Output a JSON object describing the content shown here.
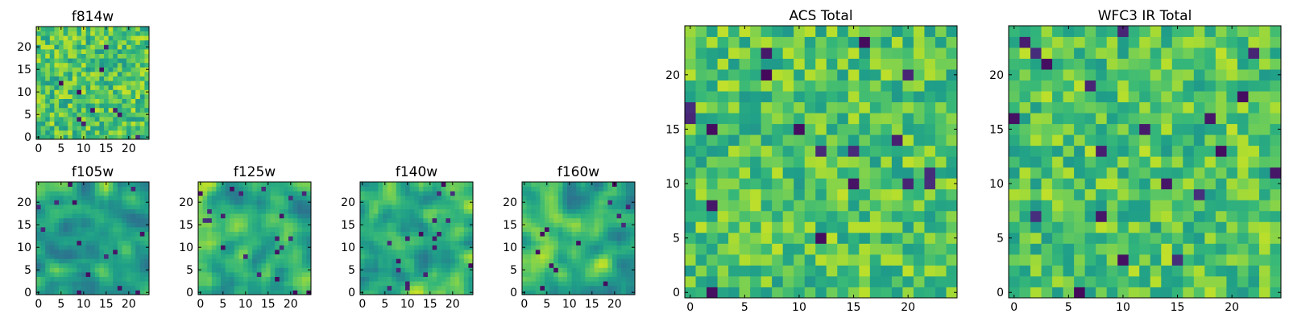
{
  "chart_data": [
    {
      "type": "heatmap",
      "title": "f814w",
      "xticks": [
        "0",
        "5",
        "10",
        "15",
        "20"
      ],
      "yticks": [
        "0",
        "5",
        "10",
        "15",
        "20"
      ],
      "xlim": [
        -0.5,
        24.5
      ],
      "ylim": [
        -0.5,
        24.5
      ],
      "grid": false,
      "colormap": "viridis",
      "size": 25,
      "seed": 11,
      "smooth": 0,
      "mean": 0.72,
      "spread": 0.2
    },
    {
      "type": "heatmap",
      "title": "f105w",
      "xticks": [
        "0",
        "5",
        "10",
        "15",
        "20"
      ],
      "yticks": [
        "0",
        "5",
        "10",
        "15",
        "20"
      ],
      "xlim": [
        -0.5,
        24.5
      ],
      "ylim": [
        -0.5,
        24.5
      ],
      "grid": false,
      "colormap": "viridis",
      "size": 25,
      "seed": 23,
      "smooth": 2,
      "mean": 0.62,
      "spread": 0.26
    },
    {
      "type": "heatmap",
      "title": "f125w",
      "xticks": [
        "0",
        "5",
        "10",
        "15",
        "20"
      ],
      "yticks": [
        "0",
        "5",
        "10",
        "15",
        "20"
      ],
      "xlim": [
        -0.5,
        24.5
      ],
      "ylim": [
        -0.5,
        24.5
      ],
      "grid": false,
      "colormap": "viridis",
      "size": 25,
      "seed": 37,
      "smooth": 2,
      "mean": 0.64,
      "spread": 0.26
    },
    {
      "type": "heatmap",
      "title": "f140w",
      "xticks": [
        "0",
        "5",
        "10",
        "15",
        "20"
      ],
      "yticks": [
        "0",
        "5",
        "10",
        "15",
        "20"
      ],
      "xlim": [
        -0.5,
        24.5
      ],
      "ylim": [
        -0.5,
        24.5
      ],
      "grid": false,
      "colormap": "viridis",
      "size": 25,
      "seed": 41,
      "smooth": 2,
      "mean": 0.66,
      "spread": 0.26
    },
    {
      "type": "heatmap",
      "title": "f160w",
      "xticks": [
        "0",
        "5",
        "10",
        "15",
        "20"
      ],
      "yticks": [
        "0",
        "5",
        "10",
        "15",
        "20"
      ],
      "xlim": [
        -0.5,
        24.5
      ],
      "ylim": [
        -0.5,
        24.5
      ],
      "grid": false,
      "colormap": "viridis",
      "size": 25,
      "seed": 53,
      "smooth": 2,
      "mean": 0.64,
      "spread": 0.27
    },
    {
      "type": "heatmap",
      "title": "ACS Total",
      "xticks": [
        "0",
        "5",
        "10",
        "15",
        "20"
      ],
      "yticks": [
        "0",
        "5",
        "10",
        "15",
        "20"
      ],
      "xlim": [
        -0.5,
        24.5
      ],
      "ylim": [
        -0.5,
        24.5
      ],
      "grid": false,
      "colormap": "viridis",
      "size": 25,
      "seed": 67,
      "smooth": 0,
      "mean": 0.72,
      "spread": 0.19
    },
    {
      "type": "heatmap",
      "title": "WFC3 IR Total",
      "xticks": [
        "0",
        "5",
        "10",
        "15",
        "20"
      ],
      "yticks": [
        "0",
        "5",
        "10",
        "15",
        "20"
      ],
      "xlim": [
        -0.5,
        24.5
      ],
      "ylim": [
        -0.5,
        24.5
      ],
      "grid": false,
      "colormap": "viridis",
      "size": 25,
      "seed": 79,
      "smooth": 0,
      "mean": 0.72,
      "spread": 0.19
    }
  ]
}
